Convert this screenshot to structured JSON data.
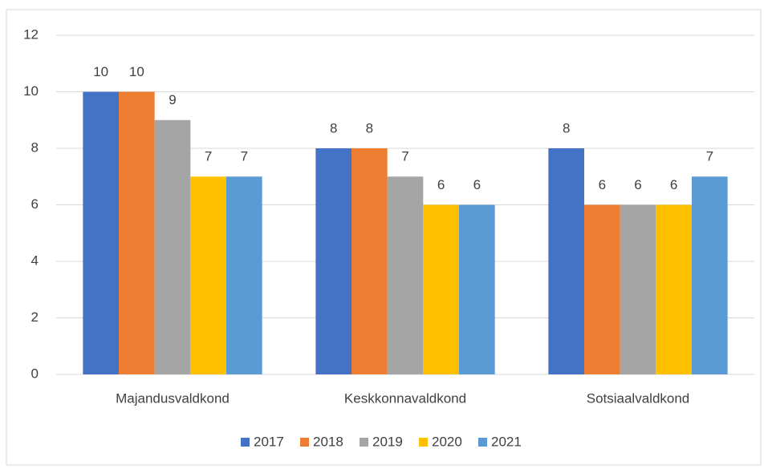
{
  "chart_data": {
    "type": "bar",
    "categories": [
      "Majandusvaldkond",
      "Keskkonnavaldkond",
      "Sotsiaalvaldkond"
    ],
    "series": [
      {
        "name": "2017",
        "color": "#4472c4",
        "values": [
          10,
          8,
          8
        ]
      },
      {
        "name": "2018",
        "color": "#ed7d31",
        "values": [
          10,
          8,
          6
        ]
      },
      {
        "name": "2019",
        "color": "#a5a5a5",
        "values": [
          9,
          7,
          6
        ]
      },
      {
        "name": "2020",
        "color": "#ffc000",
        "values": [
          7,
          6,
          6
        ]
      },
      {
        "name": "2021",
        "color": "#5b9bd5",
        "values": [
          7,
          6,
          7
        ]
      }
    ],
    "ylim": [
      0,
      12
    ],
    "yticks": [
      0,
      2,
      4,
      6,
      8,
      10,
      12
    ],
    "grid": true,
    "legend": "bottom"
  }
}
